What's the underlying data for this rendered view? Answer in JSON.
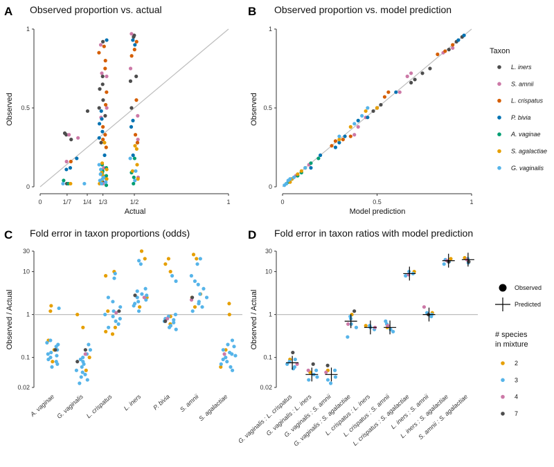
{
  "colors": {
    "L. iners": "#4d4d4d",
    "S. amnii": "#cc79a7",
    "L. crispatus": "#d55e00",
    "P. bivia": "#0072b2",
    "A. vaginae": "#009e73",
    "S. agalactiae": "#e69f00",
    "G. vaginalis": "#56b4e9",
    "n2": "#e69f00",
    "n3": "#56b4e9",
    "n4": "#cc79a7",
    "n7": "#4d4d4d",
    "reference_line": "#bdbdbd"
  },
  "legend_taxon": {
    "title": "Taxon",
    "items": [
      "L. iners",
      "S. amnii",
      "L. crispatus",
      "P. bivia",
      "A. vaginae",
      "S. agalactiae",
      "G. vaginalis"
    ]
  },
  "legend_shape": {
    "observed": "Observed",
    "predicted": "Predicted"
  },
  "legend_species": {
    "title_line1": "# species",
    "title_line2": "in mixture",
    "items": [
      "2",
      "3",
      "4",
      "7"
    ]
  },
  "chart_data": [
    {
      "panel": "A",
      "type": "scatter",
      "title": "Observed proportion vs. actual",
      "xlabel": "Actual",
      "ylabel": "Observed",
      "xlim": [
        0,
        1
      ],
      "ylim": [
        0,
        1
      ],
      "x_ticks": [
        0,
        0.1429,
        0.25,
        0.3333,
        0.5,
        1
      ],
      "x_tick_labels": [
        "0",
        "1/7",
        "1/4",
        "1/3",
        "1/2",
        "1"
      ],
      "y_ticks": [
        0,
        0.5,
        1
      ],
      "y_tick_labels": [
        "0",
        "0.5",
        "1"
      ],
      "reference_line": "y = x",
      "series": [
        {
          "name": "L. iners",
          "x": [
            0.1429,
            0.1429,
            0.1429,
            0.3333,
            0.3333,
            0.3333,
            0.3333,
            0.3333,
            0.3333,
            0.3333,
            0.5,
            0.5,
            0.5,
            0.5,
            0.5,
            0.5,
            0.25,
            0.1429,
            0.3333,
            0.3333
          ],
          "y": [
            0.34,
            0.3,
            0.02,
            0.92,
            0.7,
            0.65,
            0.62,
            0.55,
            0.5,
            0.45,
            0.96,
            0.95,
            0.7,
            0.67,
            0.5,
            0.28,
            0.48,
            0.33,
            0.28,
            0.03
          ]
        },
        {
          "name": "S. amnii",
          "x": [
            0.1429,
            0.1429,
            0.3333,
            0.3333,
            0.3333,
            0.3333,
            0.3333,
            0.3333,
            0.5,
            0.5,
            0.5,
            0.5,
            0.5,
            0.2,
            0.3333
          ],
          "y": [
            0.33,
            0.16,
            0.9,
            0.72,
            0.7,
            0.5,
            0.44,
            0.12,
            0.97,
            0.75,
            0.45,
            0.3,
            0.06,
            0.31,
            0.02
          ]
        },
        {
          "name": "L. crispatus",
          "x": [
            0.1429,
            0.3333,
            0.3333,
            0.3333,
            0.3333,
            0.3333,
            0.3333,
            0.3333,
            0.3333,
            0.3333,
            0.3333,
            0.5,
            0.5,
            0.5,
            0.5,
            0.5,
            0.5
          ],
          "y": [
            0.16,
            0.89,
            0.85,
            0.8,
            0.75,
            0.6,
            0.52,
            0.38,
            0.33,
            0.3,
            0.25,
            0.92,
            0.87,
            0.83,
            0.55,
            0.33,
            0.28
          ]
        },
        {
          "name": "P. bivia",
          "x": [
            0.1429,
            0.3333,
            0.3333,
            0.3333,
            0.3333,
            0.3333,
            0.3333,
            0.3333,
            0.5,
            0.5,
            0.5,
            0.5,
            0.5,
            0.2,
            0.1429
          ],
          "y": [
            0.12,
            0.93,
            0.48,
            0.43,
            0.4,
            0.35,
            0.31,
            0.2,
            0.93,
            0.9,
            0.42,
            0.38,
            0.2,
            0.18,
            0.11
          ]
        },
        {
          "name": "A. vaginae",
          "x": [
            0.1429,
            0.1429,
            0.3333,
            0.3333,
            0.3333,
            0.3333,
            0.3333,
            0.3333,
            0.3333,
            0.3333,
            0.5,
            0.5,
            0.5,
            0.5
          ],
          "y": [
            0.04,
            0.02,
            0.14,
            0.12,
            0.1,
            0.09,
            0.07,
            0.05,
            0.03,
            0.01,
            0.18,
            0.09,
            0.06,
            0.02
          ]
        },
        {
          "name": "S. agalactiae",
          "x": [
            0.1429,
            0.3333,
            0.3333,
            0.3333,
            0.3333,
            0.3333,
            0.3333,
            0.3333,
            0.3333,
            0.5,
            0.5,
            0.5,
            0.5,
            0.5
          ],
          "y": [
            0.02,
            0.28,
            0.15,
            0.11,
            0.09,
            0.07,
            0.05,
            0.04,
            0.02,
            0.26,
            0.24,
            0.14,
            0.1,
            0.05
          ]
        },
        {
          "name": "G. vaginalis",
          "x": [
            0.1429,
            0.25,
            0.3333,
            0.3333,
            0.3333,
            0.3333,
            0.3333,
            0.3333,
            0.3333,
            0.3333,
            0.5,
            0.5,
            0.5
          ],
          "y": [
            0.02,
            0.02,
            0.14,
            0.11,
            0.08,
            0.06,
            0.05,
            0.04,
            0.03,
            0.02,
            0.18,
            0.1,
            0.04
          ]
        }
      ]
    },
    {
      "panel": "B",
      "type": "scatter",
      "title": "Observed proportion vs. model prediction",
      "xlabel": "Model prediction",
      "ylabel": "Observed",
      "xlim": [
        0,
        1
      ],
      "ylim": [
        0,
        1
      ],
      "x_ticks": [
        0,
        0.5,
        1
      ],
      "x_tick_labels": [
        "0",
        "0.5",
        "1"
      ],
      "y_ticks": [
        0,
        0.5,
        1
      ],
      "y_tick_labels": [
        "0",
        "0.5",
        "1"
      ],
      "reference_line": "y = x",
      "series": [
        {
          "name": "L. iners",
          "x": [
            0.78,
            0.74,
            0.7,
            0.68,
            0.52,
            0.5,
            0.48,
            0.92,
            0.95,
            0.88
          ],
          "y": [
            0.75,
            0.72,
            0.68,
            0.66,
            0.52,
            0.5,
            0.48,
            0.92,
            0.95,
            0.87
          ]
        },
        {
          "name": "S. amnii",
          "x": [
            0.9,
            0.85,
            0.68,
            0.66,
            0.62,
            0.44,
            0.4,
            0.38,
            0.14,
            0.07
          ],
          "y": [
            0.88,
            0.85,
            0.72,
            0.7,
            0.6,
            0.44,
            0.38,
            0.33,
            0.14,
            0.07
          ]
        },
        {
          "name": "L. crispatus",
          "x": [
            0.9,
            0.86,
            0.82,
            0.56,
            0.54,
            0.5,
            0.36,
            0.32,
            0.28,
            0.26
          ],
          "y": [
            0.9,
            0.86,
            0.84,
            0.6,
            0.57,
            0.5,
            0.32,
            0.3,
            0.29,
            0.26
          ]
        },
        {
          "name": "P. bivia",
          "x": [
            0.96,
            0.93,
            0.6,
            0.45,
            0.4,
            0.33,
            0.3,
            0.28,
            0.2,
            0.15
          ],
          "y": [
            0.96,
            0.93,
            0.6,
            0.44,
            0.42,
            0.32,
            0.28,
            0.25,
            0.2,
            0.12
          ]
        },
        {
          "name": "A. vaginae",
          "x": [
            0.19,
            0.15,
            0.1,
            0.08,
            0.05,
            0.03,
            0.02
          ],
          "y": [
            0.18,
            0.15,
            0.09,
            0.07,
            0.05,
            0.03,
            0.02
          ]
        },
        {
          "name": "S. agalactiae",
          "x": [
            0.5,
            0.44,
            0.36,
            0.3,
            0.12,
            0.1,
            0.08,
            0.05,
            0.04
          ],
          "y": [
            0.5,
            0.48,
            0.38,
            0.3,
            0.12,
            0.1,
            0.08,
            0.05,
            0.03
          ]
        },
        {
          "name": "G. vaginalis",
          "x": [
            0.45,
            0.42,
            0.38,
            0.3,
            0.12,
            0.06,
            0.04,
            0.03,
            0.02,
            0.01
          ],
          "y": [
            0.5,
            0.45,
            0.4,
            0.32,
            0.12,
            0.06,
            0.05,
            0.04,
            0.02,
            0.01
          ]
        }
      ]
    },
    {
      "panel": "C",
      "type": "scatter",
      "title": "Fold error in taxon proportions (odds)",
      "ylabel": "Observed / Actual",
      "y_scale": "log10",
      "ylim": [
        0.02,
        30
      ],
      "y_ticks": [
        0.02,
        0.1,
        1,
        10,
        30
      ],
      "y_tick_labels": [
        "0.02",
        "0.1",
        "1",
        "10",
        "30"
      ],
      "reference_line": "y = 1",
      "categories": [
        "A. vaginae",
        "G. vaginalis",
        "L. crispatus",
        "L. iners",
        "P. bivia",
        "S. amnii",
        "S. agalactiae"
      ],
      "series": [
        {
          "name": "2",
          "category_index": [
            0,
            0,
            0,
            0,
            0,
            1,
            1,
            1,
            1,
            2,
            2,
            2,
            2,
            2,
            2,
            3,
            3,
            3,
            3,
            4,
            4,
            4,
            4,
            4,
            5,
            5,
            5,
            5,
            5,
            6,
            6,
            6,
            6
          ],
          "values": [
            1.6,
            1.2,
            0.25,
            0.15,
            0.08,
            1.0,
            0.5,
            0.1,
            0.05,
            10,
            8,
            1.2,
            0.5,
            0.4,
            0.35,
            30,
            20,
            2.5,
            1.5,
            20,
            15,
            10,
            0.9,
            0.6,
            25,
            20,
            3,
            2.5,
            1.5,
            1.8,
            1.0,
            0.15,
            0.06
          ]
        },
        {
          "name": "3",
          "category_index": [
            0,
            0,
            0,
            0,
            0,
            0,
            0,
            0,
            0,
            0,
            0,
            0,
            0,
            0,
            1,
            1,
            1,
            1,
            1,
            1,
            1,
            1,
            1,
            1,
            1,
            1,
            1,
            1,
            2,
            2,
            2,
            2,
            2,
            2,
            2,
            2,
            2,
            2,
            2,
            2,
            3,
            3,
            3,
            3,
            3,
            3,
            3,
            3,
            3,
            3,
            3,
            3,
            4,
            4,
            4,
            4,
            4,
            4,
            4,
            4,
            4,
            4,
            4,
            5,
            5,
            5,
            5,
            5,
            5,
            5,
            5,
            5,
            5,
            5,
            5,
            6,
            6,
            6,
            6,
            6,
            6,
            6,
            6,
            6,
            6,
            6,
            6,
            6
          ],
          "values": [
            1.4,
            0.25,
            0.22,
            0.2,
            0.18,
            0.15,
            0.13,
            0.12,
            0.11,
            0.1,
            0.09,
            0.08,
            0.07,
            0.06,
            0.2,
            0.15,
            0.12,
            0.1,
            0.09,
            0.08,
            0.07,
            0.06,
            0.05,
            0.045,
            0.04,
            0.035,
            0.03,
            0.025,
            9,
            7,
            2.5,
            2,
            1.5,
            1.2,
            1.0,
            0.9,
            0.8,
            0.7,
            0.6,
            0.5,
            18,
            15,
            4,
            3.5,
            3,
            2.8,
            2.5,
            2.2,
            2,
            1.8,
            1.6,
            1.2,
            8,
            6,
            1.0,
            0.9,
            0.8,
            0.75,
            0.7,
            0.65,
            0.55,
            0.5,
            0.45,
            20,
            15,
            8,
            6,
            5,
            4,
            3,
            2.5,
            2,
            1.8,
            1.5,
            1.2,
            0.25,
            0.2,
            0.18,
            0.15,
            0.13,
            0.12,
            0.11,
            0.1,
            0.09,
            0.08,
            0.07,
            0.06,
            0.05
          ]
        },
        {
          "name": "4",
          "category_index": [
            1,
            2,
            3,
            4,
            5,
            6
          ],
          "values": [
            0.12,
            1.1,
            2.5,
            0.8,
            2.2,
            0.12
          ]
        },
        {
          "name": "7",
          "category_index": [
            0,
            1,
            1,
            2,
            3,
            4,
            5
          ],
          "values": [
            0.15,
            0.15,
            0.08,
            1.2,
            2.8,
            0.7,
            2.5
          ]
        }
      ]
    },
    {
      "panel": "D",
      "type": "scatter",
      "title": "Fold error in taxon ratios with model prediction",
      "ylabel": "Observed / Actual",
      "y_scale": "log10",
      "ylim": [
        0.02,
        30
      ],
      "y_ticks": [
        0.02,
        0.1,
        1,
        10,
        30
      ],
      "y_tick_labels": [
        "0.02",
        "0.1",
        "1",
        "10",
        "30"
      ],
      "reference_line": "y = 1",
      "categories": [
        "G. vaginalis : L. crispatus",
        "G. vaginalis : L. iners",
        "G. vaginalis : S. amnii",
        "G. vaginalis : S. agalactiae",
        "L. crispatus : L. iners",
        "L. crispatus : S. amnii",
        "L. crispatus : S. agalactiae",
        "L. iners : S. amnii",
        "L. iners : S. agalactiae",
        "S. amnii : S. agalactiae"
      ],
      "predicted": [
        0.075,
        0.04,
        0.04,
        0.7,
        0.5,
        0.5,
        9,
        1.0,
        18,
        19
      ],
      "series": [
        {
          "name": "2",
          "category_index": [
            0,
            1,
            2,
            3,
            4,
            5,
            6,
            7,
            8,
            9
          ],
          "values": [
            0.09,
            0.045,
            0.05,
            1.0,
            0.55,
            0.5,
            10,
            1.1,
            20,
            21
          ]
        },
        {
          "name": "3",
          "category_index": [
            0,
            0,
            0,
            0,
            0,
            1,
            1,
            1,
            1,
            2,
            2,
            2,
            2,
            3,
            3,
            3,
            3,
            3,
            4,
            4,
            4,
            5,
            5,
            5,
            5,
            6,
            6,
            6,
            7,
            7,
            7,
            8,
            8,
            8,
            9,
            9,
            9
          ],
          "values": [
            0.09,
            0.08,
            0.07,
            0.06,
            0.055,
            0.05,
            0.04,
            0.035,
            0.03,
            0.05,
            0.035,
            0.03,
            0.025,
            0.9,
            0.8,
            0.6,
            0.5,
            0.3,
            0.55,
            0.5,
            0.45,
            0.7,
            0.6,
            0.45,
            0.4,
            10,
            9,
            8,
            1.1,
            1.0,
            0.9,
            19,
            17,
            15,
            20,
            18,
            16
          ]
        },
        {
          "name": "4",
          "category_index": [
            0,
            1,
            2,
            3,
            4,
            5,
            6,
            7,
            8,
            9
          ],
          "values": [
            0.07,
            0.05,
            0.045,
            0.6,
            0.5,
            0.55,
            8.5,
            1.5,
            18,
            19
          ]
        },
        {
          "name": "7",
          "category_index": [
            0,
            1,
            2,
            3,
            7,
            8,
            9
          ],
          "values": [
            0.13,
            0.07,
            0.065,
            1.2,
            1.0,
            17,
            17
          ]
        }
      ]
    }
  ]
}
